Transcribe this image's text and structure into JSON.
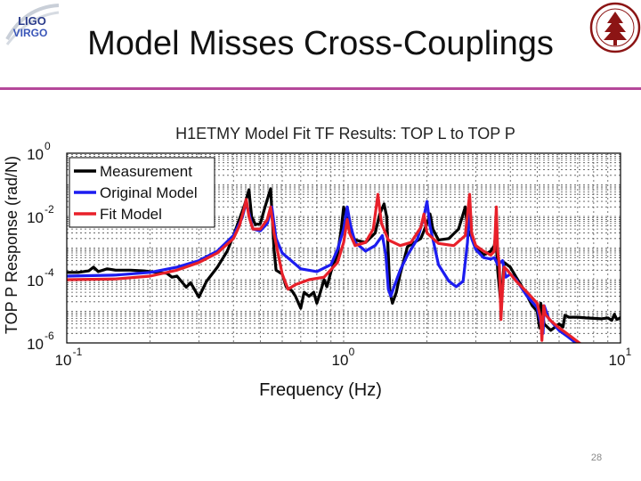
{
  "slide": {
    "title": "Model Misses Cross-Couplings",
    "page_number": "28",
    "logos": {
      "left": {
        "text_line1": "LIGO",
        "text_line2": "VIRGO"
      }
    }
  },
  "colors": {
    "measurement": "#000000",
    "original_model": "#1c1cf0",
    "fit_model": "#e8202a",
    "rule": "#b5489a"
  },
  "chart_data": {
    "type": "line",
    "title": "H1ETMY Model Fit TF Results: TOP L to TOP P",
    "xlabel": "Frequency (Hz)",
    "ylabel": "TOP P Response (rad/N)",
    "xscale": "log",
    "yscale": "log",
    "xlim": [
      0.1,
      10
    ],
    "ylim": [
      1e-06,
      1
    ],
    "grid": true,
    "legend_position": "top-left",
    "x_ticks": [
      {
        "base": "10",
        "exp": "-1"
      },
      {
        "base": "10",
        "exp": "0"
      },
      {
        "base": "10",
        "exp": "1"
      }
    ],
    "y_ticks": [
      {
        "base": "10",
        "exp": "0"
      },
      {
        "base": "10",
        "exp": "-2"
      },
      {
        "base": "10",
        "exp": "-4"
      },
      {
        "base": "10",
        "exp": "-6"
      }
    ],
    "series": [
      {
        "name": "Measurement",
        "color": "#000000",
        "points": [
          [
            0.1,
            0.00017
          ],
          [
            0.11,
            0.00017
          ],
          [
            0.12,
            0.00019
          ],
          [
            0.125,
            0.00025
          ],
          [
            0.13,
            0.00018
          ],
          [
            0.14,
            0.00022
          ],
          [
            0.15,
            0.0002
          ],
          [
            0.17,
            0.0002
          ],
          [
            0.19,
            0.00019
          ],
          [
            0.21,
            0.00017
          ],
          [
            0.23,
            0.00016
          ],
          [
            0.24,
            0.00012
          ],
          [
            0.25,
            0.00013
          ],
          [
            0.27,
            5.8e-05
          ],
          [
            0.28,
            8e-05
          ],
          [
            0.3,
            2.8e-05
          ],
          [
            0.32,
            9e-05
          ],
          [
            0.35,
            0.00025
          ],
          [
            0.38,
            0.0008
          ],
          [
            0.4,
            0.0025
          ],
          [
            0.42,
            0.008
          ],
          [
            0.44,
            0.025
          ],
          [
            0.455,
            0.07
          ],
          [
            0.465,
            0.01
          ],
          [
            0.48,
            0.0055
          ],
          [
            0.5,
            0.006
          ],
          [
            0.52,
            0.02
          ],
          [
            0.545,
            0.075
          ],
          [
            0.56,
            0.001
          ],
          [
            0.57,
            0.0002
          ],
          [
            0.6,
            0.00015
          ],
          [
            0.62,
            6e-05
          ],
          [
            0.65,
            4.5e-05
          ],
          [
            0.67,
            3e-05
          ],
          [
            0.7,
            1.25e-05
          ],
          [
            0.72,
            4e-05
          ],
          [
            0.75,
            3e-05
          ],
          [
            0.78,
            4e-05
          ],
          [
            0.8,
            1.8e-05
          ],
          [
            0.82,
            3.5e-05
          ],
          [
            0.85,
            0.0001
          ],
          [
            0.87,
            6e-05
          ],
          [
            0.9,
            0.00018
          ],
          [
            0.95,
            0.00065
          ],
          [
            0.98,
            0.004
          ],
          [
            1.0,
            0.02
          ],
          [
            1.05,
            0.0035
          ],
          [
            1.1,
            0.0018
          ],
          [
            1.2,
            0.0015
          ],
          [
            1.3,
            0.003
          ],
          [
            1.35,
            0.012
          ],
          [
            1.4,
            0.025
          ],
          [
            1.43,
            0.01
          ],
          [
            1.47,
            4e-05
          ],
          [
            1.5,
            1.8e-05
          ],
          [
            1.55,
            4e-05
          ],
          [
            1.6,
            0.00015
          ],
          [
            1.7,
            0.0011
          ],
          [
            1.8,
            0.0015
          ],
          [
            1.9,
            0.002
          ],
          [
            2.0,
            0.006
          ],
          [
            2.05,
            0.012
          ],
          [
            2.1,
            0.004
          ],
          [
            2.2,
            0.0018
          ],
          [
            2.4,
            0.002
          ],
          [
            2.6,
            0.004
          ],
          [
            2.75,
            0.02
          ],
          [
            2.8,
            0.004
          ],
          [
            3.0,
            0.0012
          ],
          [
            3.2,
            0.0006
          ],
          [
            3.4,
            0.0008
          ],
          [
            3.5,
            0.0012
          ],
          [
            3.55,
            0.003
          ],
          [
            3.6,
            0.0002
          ],
          [
            3.7,
            1.6e-05
          ],
          [
            3.75,
            8e-05
          ],
          [
            3.8,
            0.00035
          ],
          [
            4.0,
            0.00025
          ],
          [
            4.2,
            0.00012
          ],
          [
            4.5,
            4.5e-05
          ],
          [
            4.8,
            1.5e-05
          ],
          [
            5.0,
            1e-05
          ],
          [
            5.1,
            3e-06
          ],
          [
            5.15,
            1.8e-05
          ],
          [
            5.3,
            4e-06
          ],
          [
            5.6,
            2.5e-06
          ],
          [
            6.0,
            4e-06
          ],
          [
            6.2,
            3.2e-06
          ],
          [
            6.3,
            7.5e-06
          ],
          [
            6.5,
            6.5e-06
          ],
          [
            7.0,
            6.5e-06
          ],
          [
            7.5,
            6.2e-06
          ],
          [
            8.0,
            6e-06
          ],
          [
            8.5,
            5.8e-06
          ],
          [
            9.0,
            6.2e-06
          ],
          [
            9.3,
            5.2e-06
          ],
          [
            9.5,
            8e-06
          ],
          [
            9.7,
            5.5e-06
          ],
          [
            10.0,
            6.2e-06
          ]
        ]
      },
      {
        "name": "Original Model",
        "color": "#1c1cf0",
        "points": [
          [
            0.1,
            0.00013
          ],
          [
            0.15,
            0.00014
          ],
          [
            0.2,
            0.00017
          ],
          [
            0.25,
            0.00025
          ],
          [
            0.3,
            0.0004
          ],
          [
            0.35,
            0.0008
          ],
          [
            0.4,
            0.0025
          ],
          [
            0.43,
            0.009
          ],
          [
            0.445,
            0.028
          ],
          [
            0.455,
            0.013
          ],
          [
            0.47,
            0.004
          ],
          [
            0.5,
            0.0035
          ],
          [
            0.53,
            0.006
          ],
          [
            0.55,
            0.02
          ],
          [
            0.57,
            0.002
          ],
          [
            0.6,
            0.0007
          ],
          [
            0.7,
            0.00022
          ],
          [
            0.8,
            0.00018
          ],
          [
            0.9,
            0.0003
          ],
          [
            0.95,
            0.0009
          ],
          [
            1.0,
            0.004
          ],
          [
            1.03,
            0.02
          ],
          [
            1.06,
            0.005
          ],
          [
            1.1,
            0.0015
          ],
          [
            1.2,
            0.0008
          ],
          [
            1.3,
            0.0012
          ],
          [
            1.38,
            0.0025
          ],
          [
            1.42,
            0.0006
          ],
          [
            1.45,
            5e-05
          ],
          [
            1.48,
            3e-05
          ],
          [
            1.52,
            6e-05
          ],
          [
            1.6,
            0.0002
          ],
          [
            1.7,
            0.0006
          ],
          [
            1.85,
            0.002
          ],
          [
            1.95,
            0.01
          ],
          [
            2.0,
            0.03
          ],
          [
            2.05,
            0.005
          ],
          [
            2.2,
            0.0003
          ],
          [
            2.4,
            9e-05
          ],
          [
            2.55,
            6e-05
          ],
          [
            2.7,
            9e-05
          ],
          [
            2.8,
            0.0015
          ],
          [
            2.85,
            0.03
          ],
          [
            2.9,
            0.002
          ],
          [
            3.0,
            0.0009
          ],
          [
            3.2,
            0.0005
          ],
          [
            3.4,
            0.00045
          ],
          [
            3.5,
            0.0005
          ],
          [
            3.6,
            0.0003
          ],
          [
            3.75,
            0.0004
          ],
          [
            3.85,
            0.00012
          ],
          [
            4.0,
            0.00015
          ],
          [
            4.2,
            0.0001
          ],
          [
            4.6,
            3e-05
          ],
          [
            5.0,
            1.3e-05
          ],
          [
            5.25,
            2e-06
          ],
          [
            5.3,
            1.5e-05
          ],
          [
            5.5,
            6e-06
          ],
          [
            6.0,
            2.5e-06
          ],
          [
            6.5,
            1.5e-06
          ],
          [
            7.0,
            9e-07
          ]
        ]
      },
      {
        "name": "Fit Model",
        "color": "#e8202a",
        "points": [
          [
            0.1,
            0.0001
          ],
          [
            0.15,
            0.000105
          ],
          [
            0.2,
            0.00013
          ],
          [
            0.25,
            0.0002
          ],
          [
            0.3,
            0.00035
          ],
          [
            0.35,
            0.0007
          ],
          [
            0.4,
            0.002
          ],
          [
            0.42,
            0.005
          ],
          [
            0.435,
            0.015
          ],
          [
            0.445,
            0.035
          ],
          [
            0.455,
            0.01
          ],
          [
            0.47,
            0.004
          ],
          [
            0.5,
            0.004
          ],
          [
            0.53,
            0.008
          ],
          [
            0.545,
            0.02
          ],
          [
            0.56,
            0.003
          ],
          [
            0.6,
            0.00015
          ],
          [
            0.63,
            5e-05
          ],
          [
            0.67,
            7e-05
          ],
          [
            0.75,
            0.0001
          ],
          [
            0.85,
            0.00012
          ],
          [
            0.95,
            0.00035
          ],
          [
            1.0,
            0.0015
          ],
          [
            1.03,
            0.008
          ],
          [
            1.05,
            0.003
          ],
          [
            1.1,
            0.0012
          ],
          [
            1.2,
            0.0015
          ],
          [
            1.28,
            0.004
          ],
          [
            1.33,
            0.05
          ],
          [
            1.37,
            0.006
          ],
          [
            1.45,
            0.0018
          ],
          [
            1.6,
            0.0012
          ],
          [
            1.75,
            0.0015
          ],
          [
            1.9,
            0.0045
          ],
          [
            1.95,
            0.012
          ],
          [
            2.0,
            0.003
          ],
          [
            2.2,
            0.0014
          ],
          [
            2.5,
            0.0012
          ],
          [
            2.75,
            0.0025
          ],
          [
            2.85,
            0.05
          ],
          [
            2.9,
            0.003
          ],
          [
            3.0,
            0.0012
          ],
          [
            3.2,
            0.0008
          ],
          [
            3.4,
            0.0006
          ],
          [
            3.5,
            0.0008
          ],
          [
            3.53,
            0.004
          ],
          [
            3.56,
            0.02
          ],
          [
            3.6,
            0.0008
          ],
          [
            3.65,
            0.0003
          ],
          [
            3.7,
            5.5e-06
          ],
          [
            3.75,
            5e-05
          ],
          [
            3.8,
            0.00025
          ],
          [
            3.9,
            0.0002
          ],
          [
            4.2,
            9e-05
          ],
          [
            4.6,
            4e-05
          ],
          [
            5.0,
            1.8e-05
          ],
          [
            5.15,
            6e-06
          ],
          [
            5.2,
            1.2e-06
          ],
          [
            5.28,
            1.5e-05
          ],
          [
            5.35,
            8e-06
          ],
          [
            5.6,
            5e-06
          ],
          [
            6.0,
            3e-06
          ],
          [
            6.5,
            1.8e-06
          ],
          [
            7.0,
            1.1e-06
          ],
          [
            7.5,
            7e-07
          ]
        ]
      }
    ]
  }
}
